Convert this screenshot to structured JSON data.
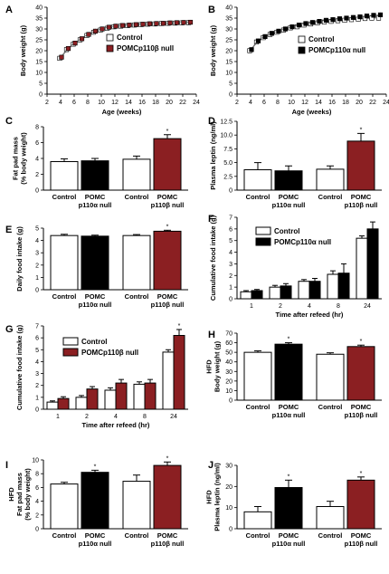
{
  "colors": {
    "control": "#ffffff",
    "p110a": "#000000",
    "p110b": "#8b1f22"
  },
  "panels": [
    {
      "id": "A",
      "letter": "A",
      "chart_data": {
        "type": "line",
        "xlabel": "Age (weeks)",
        "ylabel": "Body weight (g)",
        "xlim": [
          2,
          24
        ],
        "ylim": [
          0,
          40
        ],
        "xticks": [
          "2",
          "4",
          "6",
          "8",
          "10",
          "12",
          "14",
          "16",
          "18",
          "20",
          "22",
          "24"
        ],
        "yticks": [
          "0",
          "5",
          "10",
          "15",
          "20",
          "25",
          "30",
          "35",
          "40"
        ],
        "x": [
          4,
          5,
          6,
          7,
          8,
          9,
          10,
          11,
          12,
          13,
          14,
          15,
          16,
          17,
          18,
          19,
          20,
          21,
          22,
          23
        ],
        "legend": [
          "Control",
          "POMCp110β null"
        ],
        "series": [
          {
            "name": "Control",
            "color": "control",
            "values": [
              16.5,
              20.5,
              23,
              25,
              27,
              28.5,
              29.5,
              30.3,
              31,
              31.3,
              31.5,
              31.8,
              32,
              32.2,
              32.3,
              32.5,
              32.6,
              32.7,
              32.8,
              32.9
            ]
          },
          {
            "name": "POMCp110β null",
            "color": "p110b",
            "values": [
              17,
              21,
              23.5,
              25.5,
              27.5,
              29,
              30,
              30.8,
              31.3,
              31.6,
              31.8,
              32,
              32.2,
              32.4,
              32.5,
              32.6,
              32.8,
              32.9,
              33,
              33.1
            ]
          }
        ]
      }
    },
    {
      "id": "B",
      "letter": "B",
      "chart_data": {
        "type": "line",
        "xlabel": "Age (weeks)",
        "ylabel": "Body weight (g)",
        "xlim": [
          2,
          24
        ],
        "ylim": [
          0,
          40
        ],
        "xticks": [
          "2",
          "4",
          "6",
          "8",
          "10",
          "12",
          "14",
          "16",
          "18",
          "20",
          "22",
          "24"
        ],
        "yticks": [
          "0",
          "5",
          "10",
          "15",
          "20",
          "25",
          "30",
          "35",
          "40"
        ],
        "x": [
          4,
          5,
          6,
          7,
          8,
          9,
          10,
          11,
          12,
          13,
          14,
          15,
          16,
          17,
          18,
          19,
          20,
          21,
          22,
          23
        ],
        "legend": [
          "Control",
          "POMCp110α null"
        ],
        "series": [
          {
            "name": "Control",
            "color": "control",
            "values": [
              20,
              24,
              26,
              27.5,
              28.5,
              29.5,
              30.5,
              31,
              31.8,
              32.3,
              32.8,
              33.2,
              33.5,
              33.8,
              34,
              34.3,
              34.5,
              34.8,
              35,
              35
            ]
          },
          {
            "name": "POMCp110α null",
            "color": "p110a",
            "values": [
              20.5,
              24.5,
              26.5,
              28,
              29,
              30,
              31,
              31.8,
              32.5,
              33,
              33.5,
              34,
              34.3,
              34.7,
              35,
              35.3,
              35.6,
              36,
              36.3,
              36.5
            ]
          }
        ]
      }
    },
    {
      "id": "C",
      "letter": "C",
      "chart_data": {
        "type": "bar",
        "ylabel": "Fat pad mass|(% body weight)",
        "ylim": [
          0,
          8
        ],
        "yticks": [
          "0",
          "2",
          "4",
          "6",
          "8"
        ],
        "categories": [
          "Control",
          "POMC|p110α null",
          "Control",
          "POMC|p110β null"
        ],
        "values": [
          3.6,
          3.7,
          3.9,
          6.5
        ],
        "errors": [
          0.35,
          0.3,
          0.4,
          0.5
        ],
        "colors": [
          "control",
          "p110a",
          "control",
          "p110b"
        ],
        "annotations": [
          {
            "index": 3,
            "text": "*"
          }
        ]
      }
    },
    {
      "id": "D",
      "letter": "D",
      "chart_data": {
        "type": "bar",
        "ylabel": "Plasma leptin (ng/ml)",
        "ylim": [
          0,
          12.5
        ],
        "yticks": [
          "0",
          "2.5",
          "5.0",
          "7.5",
          "10.0",
          "12.5"
        ],
        "categories": [
          "Control",
          "POMC|p110α null",
          "Control",
          "POMC|p110β null"
        ],
        "values": [
          3.7,
          3.5,
          3.8,
          8.9
        ],
        "errors": [
          1.3,
          0.9,
          0.6,
          1.4
        ],
        "colors": [
          "control",
          "p110a",
          "control",
          "p110b"
        ],
        "annotations": [
          {
            "index": 3,
            "text": "*"
          }
        ]
      }
    },
    {
      "id": "E",
      "letter": "E",
      "chart_data": {
        "type": "bar",
        "ylabel": "Daily food intake (g)",
        "ylim": [
          0,
          5
        ],
        "yticks": [
          "0",
          "1",
          "2",
          "3",
          "4",
          "5"
        ],
        "categories": [
          "Control",
          "POMC|p110α null",
          "Control",
          "POMC|p110β null"
        ],
        "values": [
          4.4,
          4.35,
          4.4,
          4.75
        ],
        "errors": [
          0.1,
          0.08,
          0.08,
          0.08
        ],
        "colors": [
          "control",
          "p110a",
          "control",
          "p110b"
        ],
        "annotations": [
          {
            "index": 3,
            "text": "*"
          }
        ]
      }
    },
    {
      "id": "F",
      "letter": "F",
      "chart_data": {
        "type": "bar",
        "xlabel": "Time after refeed (hr)",
        "ylabel": "Cumulative food intake (g)",
        "ylim": [
          0,
          7
        ],
        "yticks": [
          "0",
          "1",
          "2",
          "3",
          "4",
          "5",
          "6",
          "7"
        ],
        "categories": [
          "1",
          "2",
          "4",
          "8",
          "24"
        ],
        "legend": [
          "Control",
          "POMCp110α null"
        ],
        "series": [
          {
            "name": "Control",
            "color": "control",
            "values": [
              0.6,
              1.0,
              1.5,
              2.1,
              5.2
            ],
            "errors": [
              0.1,
              0.15,
              0.15,
              0.3,
              0.2
            ]
          },
          {
            "name": "POMCp110α null",
            "color": "p110a",
            "values": [
              0.7,
              1.1,
              1.5,
              2.2,
              6.0
            ],
            "errors": [
              0.1,
              0.2,
              0.25,
              0.8,
              0.6
            ]
          }
        ]
      }
    },
    {
      "id": "G",
      "letter": "G",
      "chart_data": {
        "type": "bar",
        "xlabel": "Time after refeed (hr)",
        "ylabel": "Cumulative food intake (g)",
        "ylim": [
          0,
          7
        ],
        "yticks": [
          "0",
          "1",
          "2",
          "3",
          "4",
          "5",
          "6",
          "7"
        ],
        "categories": [
          "1",
          "2",
          "4",
          "8",
          "24"
        ],
        "legend": [
          "Control",
          "POMCp110β null"
        ],
        "series": [
          {
            "name": "Control",
            "color": "control",
            "values": [
              0.6,
              1.0,
              1.6,
              2.1,
              4.8
            ],
            "errors": [
              0.1,
              0.15,
              0.2,
              0.2,
              0.2
            ]
          },
          {
            "name": "POMCp110β null",
            "color": "p110b",
            "values": [
              0.9,
              1.7,
              2.2,
              2.2,
              6.2
            ],
            "errors": [
              0.15,
              0.2,
              0.3,
              0.3,
              0.5
            ]
          }
        ],
        "annotations": [
          {
            "index": 4,
            "text": "*"
          }
        ]
      }
    },
    {
      "id": "H",
      "letter": "H",
      "chart_data": {
        "type": "bar",
        "ylabel": "HFD|Body weight (g)",
        "ylim": [
          0,
          70
        ],
        "yticks": [
          "0",
          "10",
          "20",
          "30",
          "40",
          "50",
          "60",
          "70"
        ],
        "categories": [
          "Control",
          "POMC|p110α null",
          "Control",
          "POMC|p110β null"
        ],
        "values": [
          50,
          58.5,
          48,
          56
        ],
        "errors": [
          1.5,
          1.5,
          1.5,
          1.5
        ],
        "colors": [
          "control",
          "p110a",
          "control",
          "p110b"
        ],
        "annotations": [
          {
            "index": 1,
            "text": "*"
          },
          {
            "index": 3,
            "text": "*"
          }
        ]
      }
    },
    {
      "id": "I",
      "letter": "I",
      "chart_data": {
        "type": "bar",
        "ylabel": "HFD|Fat pad mass|(% body weight)",
        "ylim": [
          0,
          10
        ],
        "yticks": [
          "0",
          "2",
          "4",
          "6",
          "8",
          "10"
        ],
        "categories": [
          "Control",
          "POMC|p110α null",
          "Control",
          "POMC|p110β null"
        ],
        "values": [
          6.5,
          8.2,
          6.9,
          9.2
        ],
        "errors": [
          0.25,
          0.3,
          0.9,
          0.5
        ],
        "colors": [
          "control",
          "p110a",
          "control",
          "p110b"
        ],
        "annotations": [
          {
            "index": 1,
            "text": "*"
          },
          {
            "index": 3,
            "text": "*"
          }
        ]
      }
    },
    {
      "id": "J",
      "letter": "J",
      "chart_data": {
        "type": "bar",
        "ylabel": "HFD|Plasma leptin (ng/ml)",
        "ylim": [
          0,
          30
        ],
        "yticks": [
          "0",
          "10",
          "20",
          "30"
        ],
        "categories": [
          "Control",
          "POMC|p110α null",
          "Control",
          "POMC|p110β null"
        ],
        "values": [
          8,
          19.5,
          10.5,
          23
        ],
        "errors": [
          2.5,
          3.5,
          2.5,
          1.5
        ],
        "colors": [
          "control",
          "p110a",
          "control",
          "p110b"
        ],
        "annotations": [
          {
            "index": 1,
            "text": "*"
          },
          {
            "index": 3,
            "text": "*"
          }
        ]
      }
    }
  ]
}
